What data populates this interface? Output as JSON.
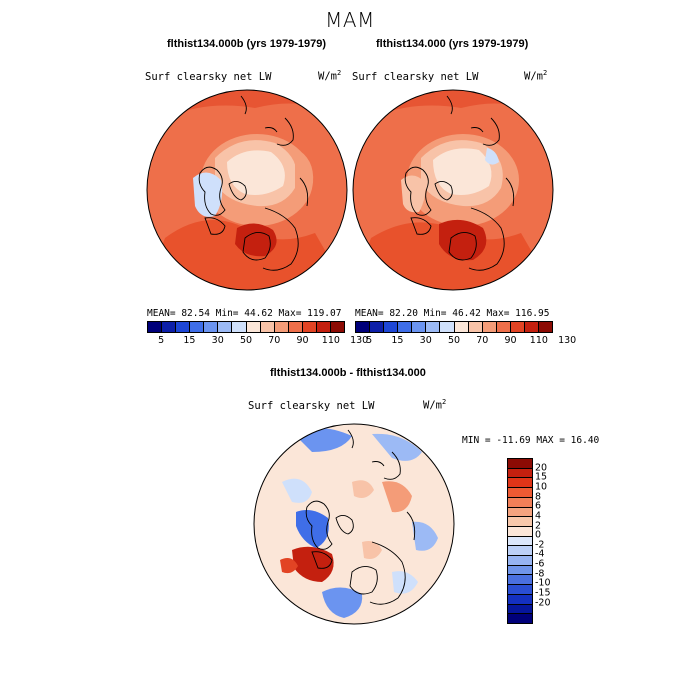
{
  "figure": {
    "title": "MAM"
  },
  "panels": [
    {
      "title": "flthist134.000b (yrs 1979-1979)",
      "field": "Surf clearsky net LW",
      "units_base": "W/m",
      "units_exp": "2",
      "stats": "MEAN=  82.54  Min=  44.62  Max= 119.07"
    },
    {
      "title": "flthist134.000 (yrs 1979-1979)",
      "field": "Surf clearsky net LW",
      "units_base": "W/m",
      "units_exp": "2",
      "stats": "MEAN=  82.20  Min=  46.42  Max= 116.95"
    },
    {
      "title": "flthist134.000b - flthist134.000",
      "field": "Surf clearsky net LW",
      "units_base": "W/m",
      "units_exp": "2",
      "stats": "MIN = -11.69 MAX =  16.40"
    }
  ],
  "colorbar_top": {
    "colors": [
      "#00007a",
      "#0d1fa8",
      "#1e47d6",
      "#3f6ee8",
      "#6b94f0",
      "#9cbaf5",
      "#cfe0fb",
      "#fbe6d8",
      "#f8c3a8",
      "#f49c78",
      "#ee6f4a",
      "#e24424",
      "#c4200f",
      "#8c0b04"
    ],
    "tick_labels": [
      "5",
      "15",
      "30",
      "50",
      "70",
      "90",
      "110",
      "130"
    ]
  },
  "colorbar_diff": {
    "colors": [
      "#8c0b04",
      "#c4200f",
      "#e03518",
      "#ee5a33",
      "#f27f58",
      "#f5a37f",
      "#f8c8ab",
      "#fbe6d8",
      "#dce7fb",
      "#bcd0f7",
      "#97b4f2",
      "#7095ea",
      "#4a70e0",
      "#2a4ed3",
      "#1430c0",
      "#06169c",
      "#00007a"
    ],
    "tick_labels": [
      "20",
      "15",
      "10",
      "8",
      "6",
      "4",
      "2",
      "0",
      "-2",
      "-4",
      "-6",
      "-8",
      "-10",
      "-15",
      "-20"
    ]
  },
  "map_colors": {
    "ocean_warm": "#ee6f4a",
    "warm_light": "#f49c78",
    "ice_cream": "#fbe6d8",
    "peach": "#f8c3a8",
    "red_hot": "#e24424",
    "cold_blue": "#cfe0fb",
    "diff_neutral": "#fbe6d8",
    "diff_blue": "#6b94f0",
    "diff_red": "#e24424"
  }
}
